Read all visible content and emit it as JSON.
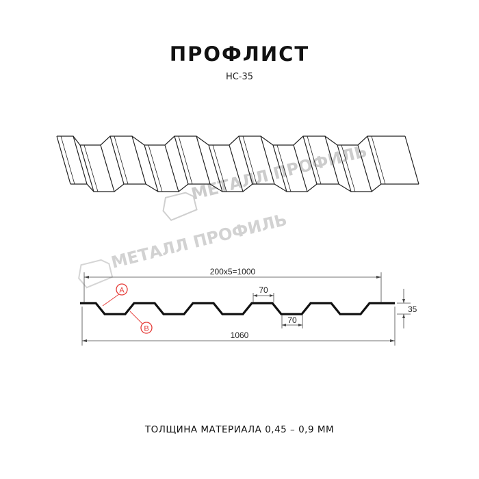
{
  "header": {
    "title": "ПРОФЛИСТ",
    "model": "НС-35"
  },
  "watermark": {
    "text": "МЕТАЛЛ ПРОФИЛЬ",
    "color": "#c8c8c8"
  },
  "section": {
    "dimensions": {
      "pitch_total": "200x5=1000",
      "top_width": "70",
      "bottom_width": "70",
      "height": "35",
      "full_width": "1060"
    },
    "markers": [
      {
        "label": "A"
      },
      {
        "label": "B"
      }
    ],
    "marker_color": "#e53935"
  },
  "footer": {
    "thickness": "ТОЛЩИНА МАТЕРИАЛА 0,45 – 0,9 ММ"
  }
}
